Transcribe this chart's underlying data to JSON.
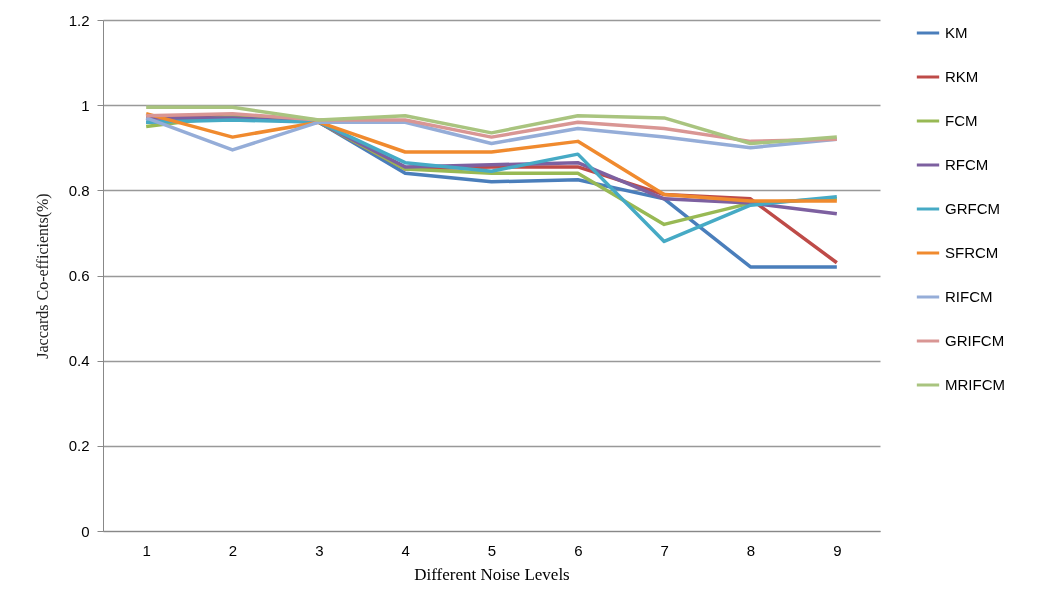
{
  "chart_data": {
    "type": "line",
    "xlabel": "Different Noise Levels",
    "ylabel": "Jaccards Co-efficients(%)",
    "categories": [
      "1",
      "2",
      "3",
      "4",
      "5",
      "6",
      "7",
      "8",
      "9"
    ],
    "ylim": [
      0,
      1.2
    ],
    "yticks": [
      0,
      0.2,
      0.4,
      0.6,
      0.8,
      1,
      1.2
    ],
    "grid": "y",
    "legend": "right",
    "marker": "none",
    "line_style": "solid",
    "series": [
      {
        "name": "KM",
        "color": "#4a7ebb",
        "values": [
          0.96,
          0.97,
          0.96,
          0.84,
          0.82,
          0.825,
          0.78,
          0.62,
          0.62
        ]
      },
      {
        "name": "RKM",
        "color": "#be4b48",
        "values": [
          0.97,
          0.975,
          0.96,
          0.85,
          0.855,
          0.855,
          0.79,
          0.78,
          0.63
        ]
      },
      {
        "name": "FCM",
        "color": "#98b954",
        "values": [
          0.95,
          0.975,
          0.96,
          0.85,
          0.84,
          0.84,
          0.72,
          0.77,
          0.78
        ]
      },
      {
        "name": "RFCM",
        "color": "#7d60a0",
        "values": [
          0.97,
          0.97,
          0.96,
          0.855,
          0.86,
          0.865,
          0.78,
          0.77,
          0.745
        ]
      },
      {
        "name": "GRFCM",
        "color": "#46aac5",
        "values": [
          0.96,
          0.965,
          0.96,
          0.865,
          0.845,
          0.885,
          0.68,
          0.765,
          0.785
        ]
      },
      {
        "name": "SFRCM",
        "color": "#f08a2e",
        "values": [
          0.98,
          0.925,
          0.96,
          0.89,
          0.89,
          0.915,
          0.79,
          0.775,
          0.775
        ]
      },
      {
        "name": "RIFCM",
        "color": "#95add8",
        "values": [
          0.97,
          0.895,
          0.96,
          0.96,
          0.91,
          0.945,
          0.925,
          0.9,
          0.92
        ]
      },
      {
        "name": "GRIFCM",
        "color": "#d99694",
        "values": [
          0.975,
          0.98,
          0.965,
          0.965,
          0.925,
          0.96,
          0.945,
          0.915,
          0.92
        ]
      },
      {
        "name": "MRIFCM",
        "color": "#a9c47f",
        "values": [
          0.995,
          0.995,
          0.965,
          0.975,
          0.935,
          0.975,
          0.97,
          0.91,
          0.925
        ]
      }
    ]
  }
}
